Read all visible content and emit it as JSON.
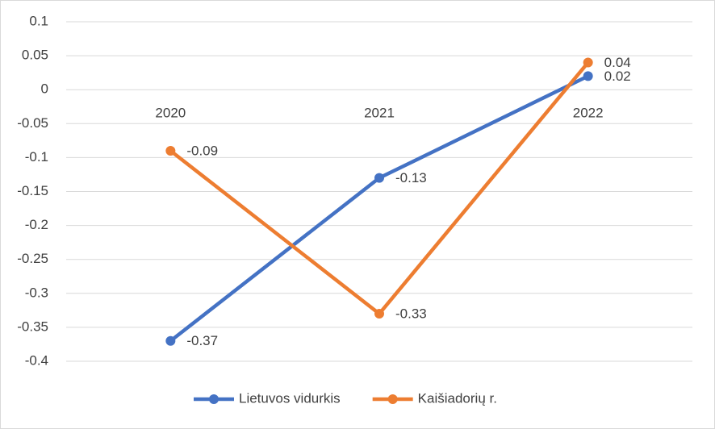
{
  "chart_data": {
    "type": "line",
    "categories": [
      "2020",
      "2021",
      "2022"
    ],
    "series": [
      {
        "name": "Lietuvos vidurkis",
        "color": "#4472c4",
        "values": [
          -0.37,
          -0.13,
          0.02
        ]
      },
      {
        "name": "Kaišiadorių r.",
        "color": "#ed7d31",
        "values": [
          -0.09,
          -0.33,
          0.04
        ]
      }
    ],
    "ylim": [
      -0.4,
      0.1
    ],
    "yticks": [
      -0.4,
      -0.35,
      -0.3,
      -0.25,
      -0.2,
      -0.15,
      -0.1,
      -0.05,
      0,
      0.05,
      0.1
    ],
    "grid": true,
    "legend": "bottom"
  }
}
